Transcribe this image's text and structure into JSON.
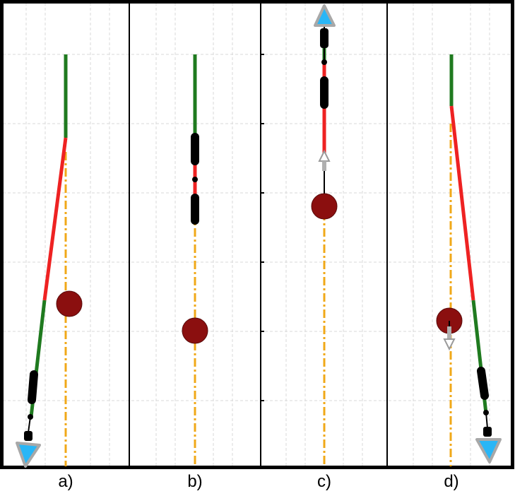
{
  "panels": [
    {
      "label": "a)",
      "description_free": true
    },
    {
      "label": "b)"
    },
    {
      "label": "c)"
    },
    {
      "label": "d)"
    }
  ],
  "colors": {
    "path_green": "#1f7a1f",
    "path_red": "#ee2222",
    "reference_line": "#f0a818",
    "obstacle": "#8b0f0f",
    "arrow_blue": "#29b6f6",
    "arrow_grey": "#b0b0b0",
    "vehicle": "#000000",
    "grid": "#d9d9d9"
  },
  "icons": [
    "arrow-down-icon",
    "arrow-up-icon",
    "obstacle-circle-icon"
  ]
}
